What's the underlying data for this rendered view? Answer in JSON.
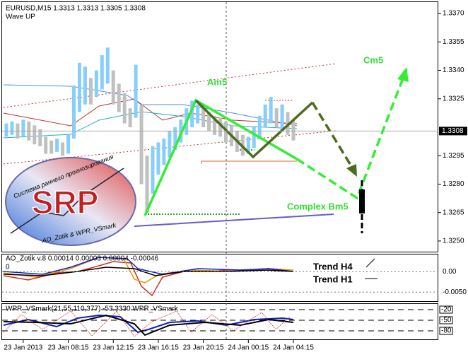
{
  "header": {
    "symbol_line": "EURUSD,M15  1.3313 1.3313 1.3305 1.3308",
    "indicator": "Wave UP"
  },
  "annotations": {
    "am5": "Am5",
    "cm5": "Cm5",
    "bm5": "Complex Bm5"
  },
  "logo": {
    "title": "SRP",
    "subtitle": "Система раннего прогнозирования",
    "credits": "AO_Zotik & WPR_VSmark"
  },
  "chart_data": {
    "type": "range_bar",
    "high": [
      1.3312,
      1.3313,
      1.3312,
      1.3314,
      1.3313,
      1.3311,
      1.3309,
      1.3305,
      1.3303,
      1.3304,
      1.3302,
      1.3306,
      1.3332,
      1.3344,
      1.3342,
      1.3336,
      1.334,
      1.3348,
      1.3352,
      1.334,
      1.3333,
      1.3328,
      1.332,
      1.3343,
      1.3322,
      1.3295,
      1.33,
      1.3302,
      1.3304,
      1.3308,
      1.331,
      1.3314,
      1.332,
      1.3324,
      1.3322,
      1.332,
      1.3318,
      1.3316,
      1.3315,
      1.3313,
      1.3311,
      1.3308,
      1.3306,
      1.3305,
      1.331,
      1.3316,
      1.3322,
      1.3326,
      1.332,
      1.3322,
      1.3318,
      1.3314
    ],
    "low": [
      1.3305,
      1.3306,
      1.3304,
      1.3305,
      1.3303,
      1.3301,
      1.33,
      1.3296,
      1.3296,
      1.3297,
      1.3295,
      1.3296,
      1.3304,
      1.3318,
      1.3322,
      1.3322,
      1.3326,
      1.333,
      1.3333,
      1.3322,
      1.3318,
      1.3312,
      1.331,
      1.3315,
      1.328,
      1.3265,
      1.3275,
      1.3285,
      1.329,
      1.3294,
      1.3298,
      1.3302,
      1.3306,
      1.331,
      1.3312,
      1.331,
      1.3308,
      1.3306,
      1.3305,
      1.3302,
      1.33,
      1.3297,
      1.3295,
      1.3296,
      1.3299,
      1.3304,
      1.331,
      1.3312,
      1.331,
      1.3308,
      1.3306,
      1.3303
    ],
    "up_color": "#87cefa",
    "down_color": "#c0c0c0",
    "current": {
      "value": 1.3308,
      "label": "1.3308"
    },
    "xlim": [
      -0.75,
      76.75
    ],
    "xticks": [
      {
        "value": 3,
        "label": "23 Jan 2013"
      },
      {
        "value": 11,
        "label": "23 Jan 08:15"
      },
      {
        "value": 19,
        "label": "23 Jan 12:15"
      },
      {
        "value": 27,
        "label": "23 Jan 16:15"
      },
      {
        "value": 35,
        "label": "23 Jan 20:15"
      },
      {
        "value": 43,
        "label": "24 Jan 00:15"
      },
      {
        "value": 51,
        "label": "24 Jan 04:15"
      }
    ],
    "ylim": [
      1.3244,
      1.3376
    ],
    "yticks": [
      {
        "value": 1.337,
        "label": "1.3370"
      },
      {
        "value": 1.3355,
        "label": "1.3355"
      },
      {
        "value": 1.334,
        "label": "1.3340"
      },
      {
        "value": 1.3325,
        "label": "1.3325"
      },
      {
        "value": 1.3295,
        "label": "1.3295"
      },
      {
        "value": 1.328,
        "label": "1.3280"
      },
      {
        "value": 1.3265,
        "label": "1.3265"
      },
      {
        "value": 1.325,
        "label": "1.3250"
      }
    ]
  },
  "ao_window": {
    "label": "AO_Zotik v.8 0.00014 0.00003 0.00004 -0.00046",
    "zero": "0",
    "ylim": [
      -0.0072,
      0.0042
    ],
    "yticks": [
      {
        "value": 0,
        "label": "0.00"
      },
      {
        "value": -0.005,
        "label": "-0.0050"
      }
    ],
    "trend_h4": "Trend H4",
    "trend_h1": "Trend H1"
  },
  "wpr_window": {
    "label": "WPR_VSmark(21,55,110,377) -53.3330 WPR_VSmark",
    "ylim": [
      -104,
      -4
    ],
    "yticks": [
      -20,
      -50,
      -80
    ]
  }
}
